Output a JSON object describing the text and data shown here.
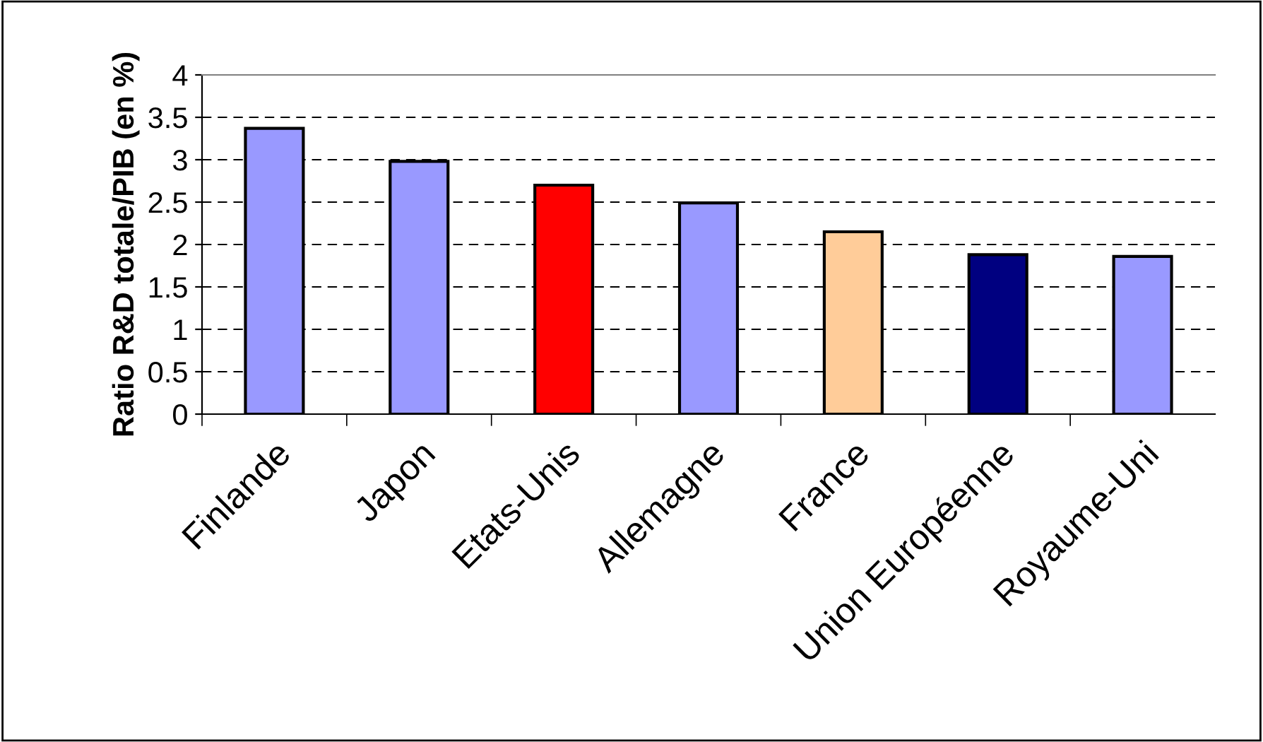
{
  "chart_data": {
    "type": "bar",
    "ylabel": "Ratio R&D totale/PIB (en %)",
    "categories": [
      "Finlande",
      "Japon",
      "Etats-Unis",
      "Allemagne",
      "France",
      "Union Européenne",
      "Royaume-Uni"
    ],
    "values": [
      3.37,
      2.98,
      2.7,
      2.49,
      2.15,
      1.88,
      1.86
    ],
    "colors": [
      "#9999ff",
      "#9999ff",
      "#ff0000",
      "#9999ff",
      "#ffcc99",
      "#000080",
      "#9999ff"
    ],
    "ylim": [
      0,
      4
    ],
    "yticks": [
      0,
      0.5,
      1,
      1.5,
      2,
      2.5,
      3,
      3.5,
      4
    ],
    "grid": "y"
  }
}
